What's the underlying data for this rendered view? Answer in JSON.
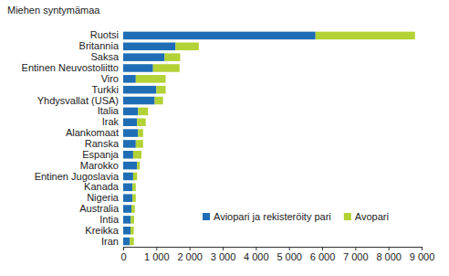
{
  "chart_data": {
    "type": "bar",
    "orientation": "horizontal",
    "stacked": true,
    "grid": false,
    "legend": "bottom-right",
    "title": "Miehen syntymämaa",
    "categories": [
      "Ruotsi",
      "Britannia",
      "Saksa",
      "Entinen Neuvostoliitto",
      "Viro",
      "Turkki",
      "Yhdysvallat (USA)",
      "Italia",
      "Irak",
      "Alankomaat",
      "Ranska",
      "Espanja",
      "Marokko",
      "Entinen Jugoslavia",
      "Kanada",
      "Nigeria",
      "Australia",
      "Intia",
      "Kreikka",
      "Iran"
    ],
    "series": [
      {
        "name": "Aviopari ja rekisteröity pari",
        "color": "#1f6eb5",
        "values": [
          5800,
          1580,
          1250,
          900,
          380,
          1000,
          950,
          450,
          420,
          450,
          380,
          300,
          420,
          300,
          280,
          280,
          250,
          230,
          220,
          200
        ]
      },
      {
        "name": "Avopari",
        "color": "#b2d235",
        "values": [
          3000,
          700,
          470,
          800,
          900,
          280,
          250,
          300,
          260,
          150,
          220,
          250,
          80,
          120,
          100,
          100,
          100,
          100,
          100,
          120
        ]
      }
    ],
    "xlim": [
      0,
      9000
    ],
    "xticks": [
      0,
      {
        "value": 1000,
        "label": "1 000"
      },
      {
        "value": 2000,
        "label": "2 000"
      },
      {
        "value": 3000,
        "label": "3 000"
      },
      {
        "value": 4000,
        "label": "4 000"
      },
      {
        "value": 5000,
        "label": "5 000"
      },
      {
        "value": 6000,
        "label": "6 000"
      },
      {
        "value": 7000,
        "label": "7 000"
      },
      {
        "value": 8000,
        "label": "8 000"
      },
      {
        "value": 9000,
        "label": "9 000"
      }
    ]
  }
}
